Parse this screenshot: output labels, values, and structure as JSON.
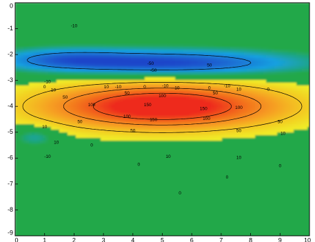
{
  "chart_data": {
    "type": "heatmap",
    "title": "",
    "xlabel": "",
    "ylabel": "",
    "xlim": [
      0,
      10
    ],
    "ylim": [
      -9,
      0
    ],
    "x_ticks": [
      "0",
      "1",
      "2",
      "3",
      "4",
      "5",
      "6",
      "7",
      "8",
      "9",
      "10"
    ],
    "y_ticks": [
      "0",
      "-1",
      "-2",
      "-3",
      "-4",
      "-5",
      "-6",
      "-7",
      "-8",
      "-9"
    ],
    "grid": false,
    "legend": "none",
    "colormap": [
      "#1d45c9",
      "#18a0e0",
      "#22a84a",
      "#f0ee26",
      "#f6a020",
      "#ee2a1e"
    ],
    "background_value": 0,
    "field_components": [
      {
        "cx": 5.0,
        "cy": -4.0,
        "sx": 2.9,
        "sy": 0.62,
        "amp": 190
      },
      {
        "cx": 5.0,
        "cy": -4.0,
        "sx": 1.35,
        "sy": 0.3,
        "amp": 60
      },
      {
        "cx": 5.2,
        "cy": -2.35,
        "sx": 3.2,
        "sy": 0.38,
        "amp": -78
      },
      {
        "cx": 1.5,
        "cy": -2.15,
        "sx": 1.6,
        "sy": 0.3,
        "amp": -35
      },
      {
        "cx": 0.7,
        "cy": -5.15,
        "sx": 0.55,
        "sy": 0.28,
        "amp": -35
      }
    ],
    "contour_levels": [
      -50,
      50,
      100,
      150
    ],
    "contour_labels": [
      {
        "x": 2.0,
        "y": -0.9,
        "text": "-10"
      },
      {
        "x": 4.6,
        "y": -2.35,
        "text": "-50"
      },
      {
        "x": 6.6,
        "y": -2.42,
        "text": "50"
      },
      {
        "x": 4.7,
        "y": -2.62,
        "text": "-50"
      },
      {
        "x": 1.1,
        "y": -3.05,
        "text": "-10"
      },
      {
        "x": 1.0,
        "y": -3.25,
        "text": "0"
      },
      {
        "x": 1.3,
        "y": -3.38,
        "text": "10"
      },
      {
        "x": 3.1,
        "y": -3.25,
        "text": "10"
      },
      {
        "x": 3.5,
        "y": -3.25,
        "text": "-10"
      },
      {
        "x": 4.4,
        "y": -3.25,
        "text": "0"
      },
      {
        "x": 5.1,
        "y": -3.22,
        "text": "-10"
      },
      {
        "x": 5.5,
        "y": -3.3,
        "text": "10"
      },
      {
        "x": 6.6,
        "y": -3.3,
        "text": "0"
      },
      {
        "x": 7.2,
        "y": -3.22,
        "text": "-10"
      },
      {
        "x": 7.6,
        "y": -3.35,
        "text": "10"
      },
      {
        "x": 8.6,
        "y": -3.35,
        "text": "0"
      },
      {
        "x": 1.7,
        "y": -3.65,
        "text": "50"
      },
      {
        "x": 3.8,
        "y": -3.5,
        "text": "50"
      },
      {
        "x": 5.0,
        "y": -3.6,
        "text": "100"
      },
      {
        "x": 6.8,
        "y": -3.5,
        "text": "50"
      },
      {
        "x": 2.6,
        "y": -3.95,
        "text": "100"
      },
      {
        "x": 4.5,
        "y": -3.95,
        "text": "150"
      },
      {
        "x": 6.4,
        "y": -4.1,
        "text": "150"
      },
      {
        "x": 7.6,
        "y": -4.05,
        "text": "100"
      },
      {
        "x": 3.8,
        "y": -4.4,
        "text": "100"
      },
      {
        "x": 4.7,
        "y": -4.52,
        "text": "150"
      },
      {
        "x": 6.5,
        "y": -4.48,
        "text": "100"
      },
      {
        "x": 2.2,
        "y": -4.6,
        "text": "50"
      },
      {
        "x": 9.0,
        "y": -4.6,
        "text": "50"
      },
      {
        "x": 1.0,
        "y": -4.8,
        "text": "10"
      },
      {
        "x": 4.0,
        "y": -4.95,
        "text": "50"
      },
      {
        "x": 7.6,
        "y": -4.95,
        "text": "50"
      },
      {
        "x": 9.1,
        "y": -5.05,
        "text": "10"
      },
      {
        "x": 1.4,
        "y": -5.4,
        "text": "10"
      },
      {
        "x": 2.6,
        "y": -5.5,
        "text": "0"
      },
      {
        "x": 1.1,
        "y": -5.95,
        "text": "-10"
      },
      {
        "x": 5.2,
        "y": -5.95,
        "text": "10"
      },
      {
        "x": 7.6,
        "y": -5.98,
        "text": "10"
      },
      {
        "x": 4.2,
        "y": -6.25,
        "text": "0"
      },
      {
        "x": 9.0,
        "y": -6.3,
        "text": "0"
      },
      {
        "x": 7.2,
        "y": -6.75,
        "text": "0"
      },
      {
        "x": 5.6,
        "y": -7.35,
        "text": "0"
      }
    ]
  }
}
